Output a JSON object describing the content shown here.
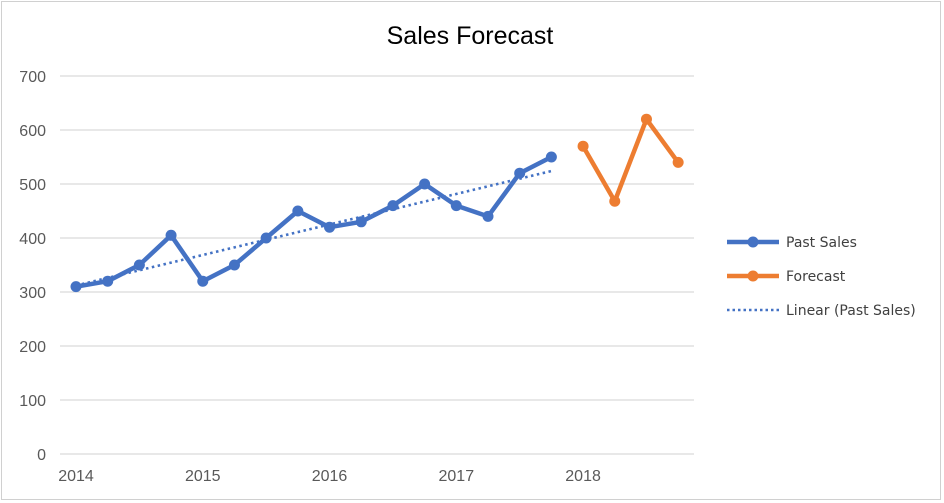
{
  "chart_data": {
    "type": "line",
    "title": "Sales Forecast",
    "xlabel": "",
    "ylabel": "",
    "ylim": [
      0,
      700
    ],
    "yticks": [
      "0",
      "100",
      "200",
      "300",
      "400",
      "500",
      "600",
      "700"
    ],
    "xticks": [
      "2014",
      "2015",
      "2016",
      "2017",
      "2018"
    ],
    "xlim": [
      2014,
      2019
    ],
    "grid": true,
    "legend_position": "right",
    "series": [
      {
        "name": "Past Sales",
        "color": "#4472c4",
        "marker": "circle",
        "x": [
          2014.0,
          2014.25,
          2014.5,
          2014.75,
          2015.0,
          2015.25,
          2015.5,
          2015.75,
          2016.0,
          2016.25,
          2016.5,
          2016.75,
          2017.0,
          2017.25,
          2017.5,
          2017.75
        ],
        "values": [
          310,
          320,
          350,
          405,
          320,
          350,
          400,
          450,
          420,
          430,
          460,
          500,
          460,
          440,
          520,
          550
        ]
      },
      {
        "name": "Forecast",
        "color": "#ed7d31",
        "marker": "circle",
        "x": [
          2018.0,
          2018.25,
          2018.5,
          2018.75
        ],
        "values": [
          570,
          468,
          620,
          540
        ]
      }
    ],
    "trendline": {
      "name": "Linear (Past Sales)",
      "color": "#4472c4",
      "style": "dotted",
      "x": [
        2014.0,
        2017.75
      ],
      "values": [
        312,
        524
      ]
    }
  }
}
